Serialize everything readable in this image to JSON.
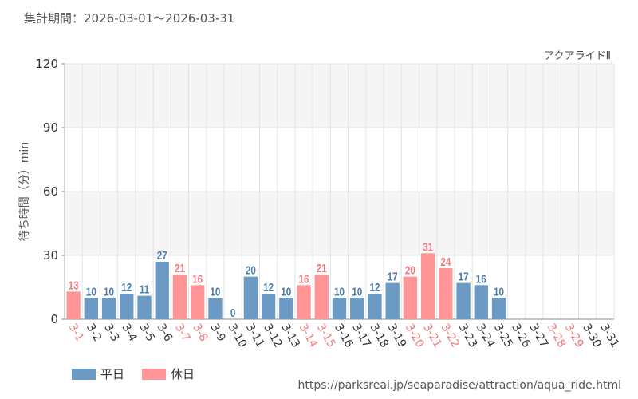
{
  "period_label": "集計期間：2026-03-01～2026-03-31",
  "source_url": "https://parksreal.jp/seaparadise/attraction/aqua_ride.html",
  "legend": [
    {
      "label": "平日",
      "color": "#6b9ac4"
    },
    {
      "label": "休日",
      "color": "#ff9596"
    }
  ],
  "colors": {
    "weekday": "#6b9ac4",
    "holiday": "#ff9596",
    "weekday_text": "#4a7eb0",
    "holiday_text": "#f07a7c",
    "axis_text": "#333333",
    "grid": "#e3e3e3",
    "band": "#f5f5f5"
  },
  "chart_data": {
    "type": "bar",
    "title": "アクアライドⅡ",
    "xlabel": "",
    "ylabel": "待ち時間（分）min",
    "ylim": [
      0,
      120
    ],
    "yticks": [
      0,
      30,
      60,
      90,
      120
    ],
    "categories": [
      "3-1",
      "3-2",
      "3-3",
      "3-4",
      "3-5",
      "3-6",
      "3-7",
      "3-8",
      "3-9",
      "3-10",
      "3-11",
      "3-12",
      "3-13",
      "3-14",
      "3-15",
      "3-16",
      "3-17",
      "3-18",
      "3-19",
      "3-20",
      "3-21",
      "3-22",
      "3-23",
      "3-24",
      "3-25",
      "3-26",
      "3-27",
      "3-28",
      "3-29",
      "3-30",
      "3-31"
    ],
    "values": [
      13,
      10,
      10,
      12,
      11,
      27,
      21,
      16,
      10,
      0,
      20,
      12,
      10,
      16,
      21,
      10,
      10,
      12,
      17,
      20,
      31,
      24,
      17,
      16,
      10,
      null,
      null,
      null,
      null,
      null,
      null
    ],
    "day_type": [
      "holiday",
      "weekday",
      "weekday",
      "weekday",
      "weekday",
      "weekday",
      "holiday",
      "holiday",
      "weekday",
      "weekday",
      "weekday",
      "weekday",
      "weekday",
      "holiday",
      "holiday",
      "weekday",
      "weekday",
      "weekday",
      "weekday",
      "holiday",
      "holiday",
      "holiday",
      "weekday",
      "weekday",
      "weekday",
      "weekday",
      "weekday",
      "holiday",
      "holiday",
      "weekday",
      "weekday"
    ]
  }
}
